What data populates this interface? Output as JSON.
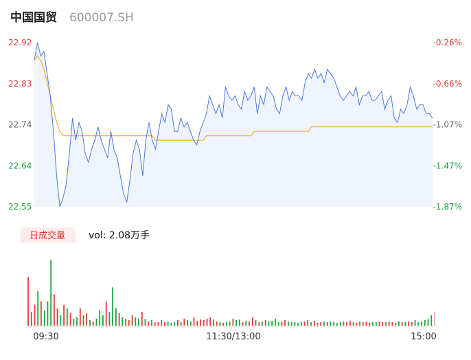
{
  "header": {
    "name": "中国国贸",
    "code": "600007.SH"
  },
  "colors": {
    "price_line": "#4a78e0",
    "avg_line": "#f0b429",
    "up": "#e53935",
    "down": "#1aa33a",
    "fill": "#eef3fc"
  },
  "volume_panel": {
    "tab_label": "日成交量",
    "vol_label": "vol: 2.08万手"
  },
  "chart_data": {
    "type": "line",
    "y_left_ticks": [
      "22.92",
      "22.83",
      "22.74",
      "22.64",
      "22.55"
    ],
    "y_right_ticks": [
      "-0.26%",
      "-0.66%",
      "-1.07%",
      "-1.47%",
      "-1.87%"
    ],
    "x_tick_labels": [
      "09:30",
      "11:30/13:00",
      "15:00"
    ],
    "ylim": [
      22.55,
      22.92
    ],
    "price": [
      22.88,
      22.92,
      22.89,
      22.9,
      22.85,
      22.8,
      22.72,
      22.62,
      22.55,
      22.57,
      22.6,
      22.67,
      22.75,
      22.7,
      22.74,
      22.72,
      22.67,
      22.65,
      22.68,
      22.7,
      22.73,
      22.7,
      22.68,
      22.66,
      22.72,
      22.68,
      22.66,
      22.62,
      22.58,
      22.56,
      22.61,
      22.67,
      22.7,
      22.68,
      22.62,
      22.7,
      22.74,
      22.7,
      22.68,
      22.72,
      22.76,
      22.74,
      22.78,
      22.77,
      22.72,
      22.72,
      22.75,
      22.73,
      22.74,
      22.72,
      22.7,
      22.69,
      22.72,
      22.74,
      22.76,
      22.8,
      22.78,
      22.76,
      22.78,
      22.75,
      22.82,
      22.8,
      22.79,
      22.8,
      22.78,
      22.77,
      22.81,
      22.79,
      22.8,
      22.82,
      22.76,
      22.8,
      22.78,
      22.82,
      22.81,
      22.8,
      22.77,
      22.76,
      22.8,
      22.82,
      22.79,
      22.81,
      22.8,
      22.8,
      22.79,
      22.83,
      22.85,
      22.84,
      22.86,
      22.84,
      22.85,
      22.83,
      22.86,
      22.85,
      22.84,
      22.82,
      22.8,
      22.79,
      22.8,
      22.81,
      22.8,
      22.82,
      22.78,
      22.8,
      22.8,
      22.81,
      22.79,
      22.79,
      22.8,
      22.81,
      22.77,
      22.79,
      22.8,
      22.75,
      22.74,
      22.77,
      22.76,
      22.78,
      22.82,
      22.8,
      22.77,
      22.78,
      22.78,
      22.76,
      22.76,
      22.75
    ],
    "avg": [
      22.88,
      22.89,
      22.88,
      22.86,
      22.83,
      22.8,
      22.77,
      22.74,
      22.72,
      22.71,
      22.71,
      22.71,
      22.71,
      22.71,
      22.71,
      22.71,
      22.71,
      22.71,
      22.71,
      22.71,
      22.71,
      22.71,
      22.71,
      22.71,
      22.71,
      22.71,
      22.71,
      22.71,
      22.71,
      22.71,
      22.71,
      22.71,
      22.71,
      22.71,
      22.71,
      22.71,
      22.71,
      22.71,
      22.7,
      22.7,
      22.7,
      22.7,
      22.7,
      22.7,
      22.7,
      22.7,
      22.7,
      22.7,
      22.7,
      22.7,
      22.7,
      22.7,
      22.7,
      22.7,
      22.71,
      22.71,
      22.71,
      22.71,
      22.71,
      22.71,
      22.71,
      22.71,
      22.71,
      22.71,
      22.71,
      22.71,
      22.71,
      22.71,
      22.71,
      22.72,
      22.72,
      22.72,
      22.72,
      22.72,
      22.72,
      22.72,
      22.72,
      22.72,
      22.72,
      22.72,
      22.72,
      22.72,
      22.72,
      22.72,
      22.72,
      22.72,
      22.72,
      22.73,
      22.73,
      22.73,
      22.73,
      22.73,
      22.73,
      22.73,
      22.73,
      22.73,
      22.73,
      22.73,
      22.73,
      22.73,
      22.73,
      22.73,
      22.73,
      22.73,
      22.73,
      22.73,
      22.73,
      22.73,
      22.73,
      22.73,
      22.73,
      22.73,
      22.73,
      22.73,
      22.73,
      22.73,
      22.73,
      22.73,
      22.73,
      22.73,
      22.73,
      22.73,
      22.73,
      22.73,
      22.73,
      22.73
    ],
    "volume": [
      0.7,
      0.2,
      0.3,
      0.5,
      0.35,
      0.22,
      0.35,
      0.95,
      0.45,
      0.25,
      0.15,
      0.3,
      0.25,
      0.18,
      0.1,
      0.12,
      0.25,
      0.15,
      0.18,
      0.08,
      0.06,
      0.1,
      0.22,
      0.15,
      0.35,
      0.2,
      0.55,
      0.25,
      0.18,
      0.12,
      0.1,
      0.08,
      0.15,
      0.12,
      0.1,
      0.2,
      0.1,
      0.06,
      0.08,
      0.05,
      0.05,
      0.08,
      0.05,
      0.06,
      0.04,
      0.05,
      0.08,
      0.05,
      0.1,
      0.08,
      0.06,
      0.12,
      0.07,
      0.09,
      0.08,
      0.1,
      0.12,
      0.09,
      0.06,
      0.05,
      0.04,
      0.05,
      0.06,
      0.1,
      0.08,
      0.09,
      0.05,
      0.07,
      0.06,
      0.12,
      0.08,
      0.05,
      0.06,
      0.08,
      0.06,
      0.07,
      0.1,
      0.05,
      0.06,
      0.08,
      0.06,
      0.05,
      0.05,
      0.04,
      0.05,
      0.06,
      0.08,
      0.05,
      0.07,
      0.04,
      0.05,
      0.06,
      0.05,
      0.06,
      0.05,
      0.04,
      0.05,
      0.06,
      0.05,
      0.07,
      0.05,
      0.04,
      0.06,
      0.05,
      0.06,
      0.04,
      0.05,
      0.05,
      0.06,
      0.05,
      0.05,
      0.06,
      0.05,
      0.04,
      0.06,
      0.05,
      0.05,
      0.06,
      0.05,
      0.08,
      0.05,
      0.06,
      0.08,
      0.1,
      0.15,
      0.2
    ],
    "volume_up": [
      1,
      0,
      1,
      0,
      1,
      0,
      0,
      0,
      1,
      1,
      0,
      1,
      0,
      1,
      0,
      0,
      1,
      0,
      1,
      0,
      1,
      0,
      0,
      0,
      1,
      0,
      0,
      0,
      1,
      0,
      1,
      1,
      1,
      0,
      0,
      1,
      0,
      1,
      0,
      1,
      1,
      0,
      1,
      0,
      0,
      0,
      1,
      0,
      1,
      0,
      0,
      1,
      1,
      1,
      1,
      1,
      1,
      0,
      1,
      0,
      1,
      0,
      0,
      1,
      0,
      0,
      1,
      0,
      1,
      1,
      0,
      1,
      0,
      1,
      0,
      0,
      0,
      0,
      1,
      1,
      0,
      1,
      0,
      0,
      0,
      1,
      1,
      0,
      1,
      0,
      1,
      0,
      1,
      0,
      0,
      0,
      0,
      0,
      1,
      1,
      0,
      1,
      0,
      1,
      1,
      1,
      0,
      0,
      1,
      1,
      0,
      1,
      1,
      0,
      0,
      1,
      0,
      1,
      1,
      0,
      0,
      1,
      0,
      0,
      0,
      1
    ]
  }
}
